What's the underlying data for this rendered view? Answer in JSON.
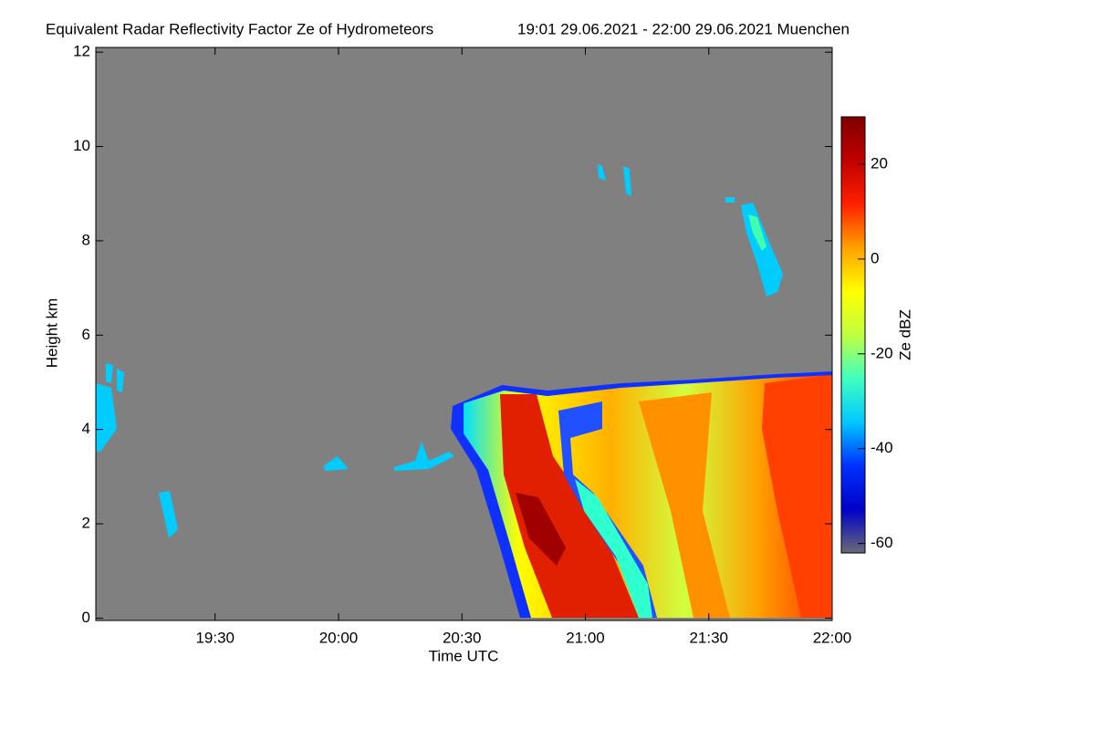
{
  "chart_data": {
    "type": "heatmap",
    "title": "Equivalent Radar Reflectivity Factor Ze of Hydrometeors",
    "subtitle": "19:01 29.06.2021 - 22:00 29.06.2021 Muenchen",
    "x_label": "Time UTC",
    "y_label": "Height km",
    "colorbar_label": "Ze dBZ",
    "xlim": [
      1141,
      1320
    ],
    "xticks": [
      {
        "value": 1170,
        "label": "19:30"
      },
      {
        "value": 1200,
        "label": "20:00"
      },
      {
        "value": 1230,
        "label": "20:30"
      },
      {
        "value": 1260,
        "label": "21:00"
      },
      {
        "value": 1290,
        "label": "21:30"
      },
      {
        "value": 1320,
        "label": "22:00"
      }
    ],
    "ylim": [
      -0.05,
      12.1
    ],
    "yticks": [
      0,
      2,
      4,
      6,
      8,
      10,
      12
    ],
    "clim": [
      -62,
      30
    ],
    "cticks": [
      -60,
      -40,
      -20,
      0,
      20
    ],
    "colormap": [
      "#6a6a78",
      "#0000c8",
      "#0030ff",
      "#00c8ff",
      "#40ffc0",
      "#c0ff40",
      "#ffff00",
      "#ffa000",
      "#ff2000",
      "#c00000",
      "#800000"
    ],
    "background": "#808080"
  }
}
